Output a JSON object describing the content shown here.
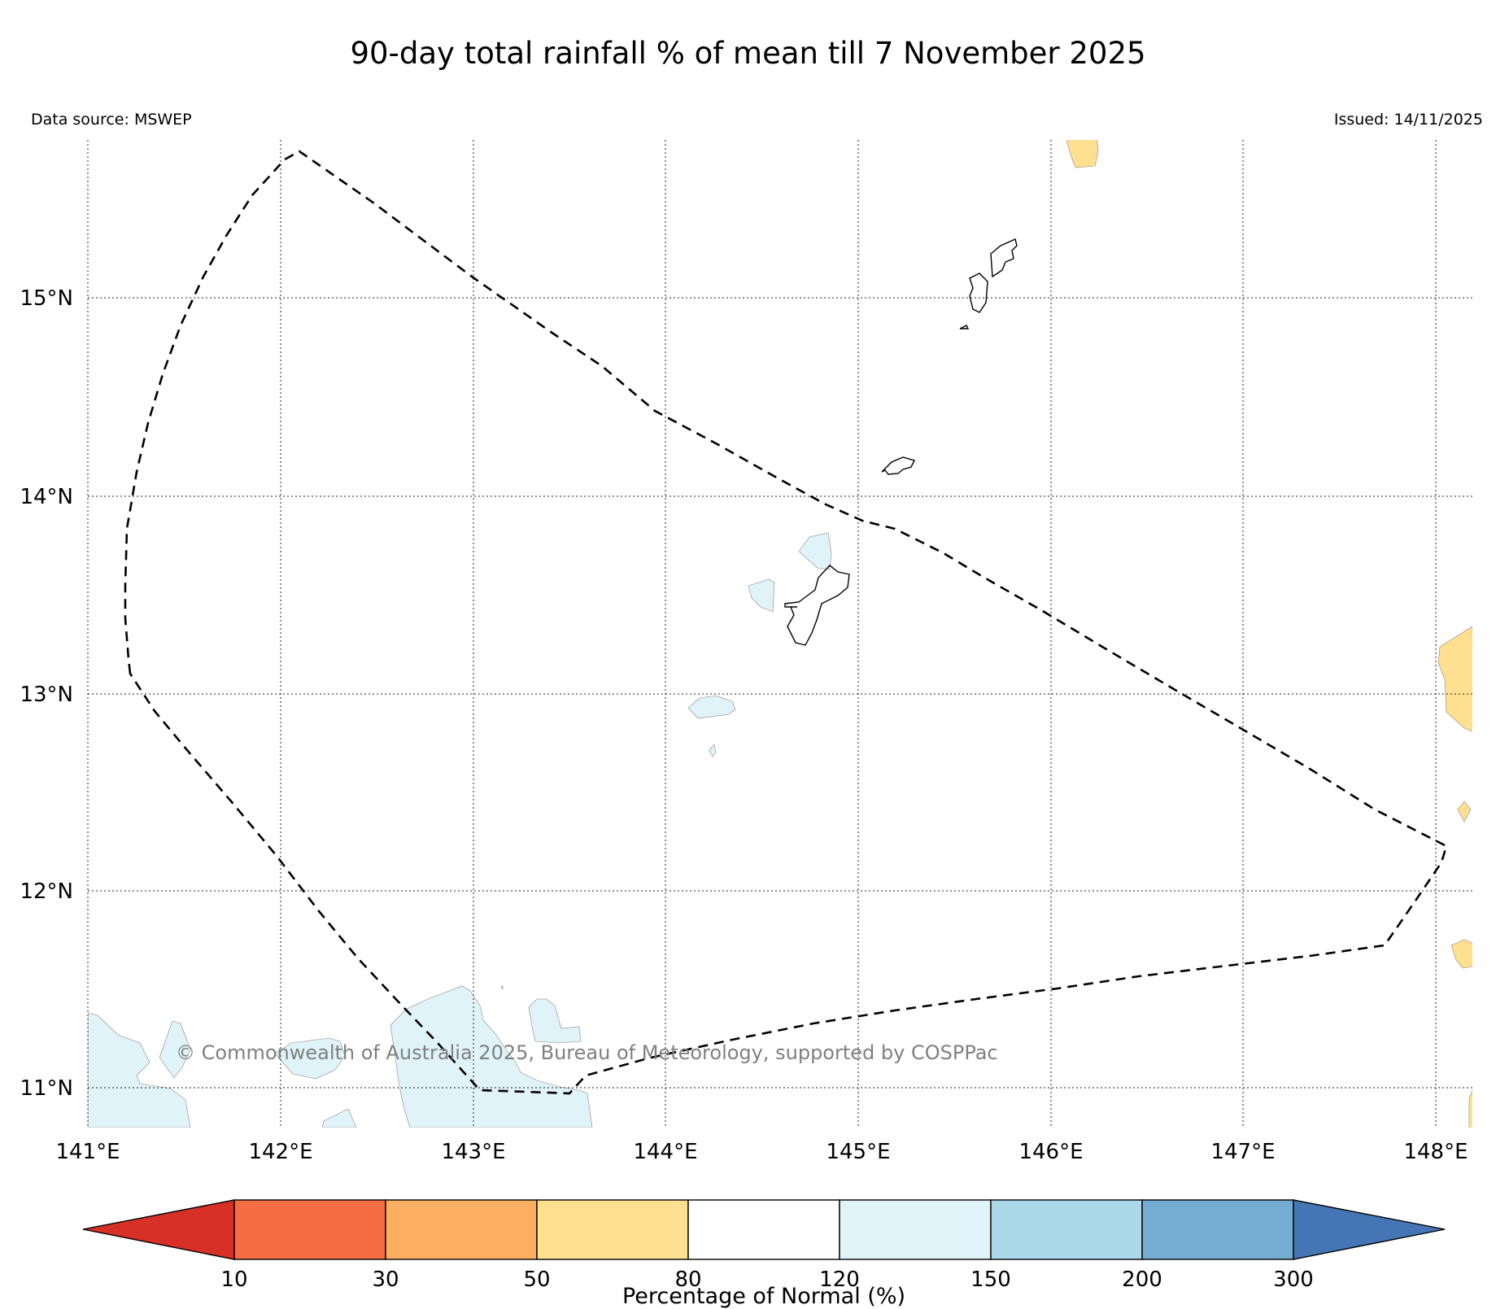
{
  "title": "90-day total rainfall % of mean till 7 November 2025",
  "data_source": "Data source: MSWEP",
  "issued": "Issued: 14/11/2025",
  "copyright": "© Commonwealth of Australia 2025, Bureau of Meteorology, supported by COSPPac",
  "map": {
    "lon_range": [
      141,
      148.2
    ],
    "lat_range": [
      10.8,
      15.8
    ],
    "gridlines": true,
    "lon_ticks": [
      "141°E",
      "142°E",
      "143°E",
      "144°E",
      "145°E",
      "146°E",
      "147°E",
      "148°E"
    ],
    "lat_ticks": [
      "11°N",
      "12°N",
      "13°N",
      "14°N",
      "15°N"
    ],
    "boundary_style": "dashed",
    "colors": {
      "below_50_80": "#fee090",
      "above_120_150": "#e0f3f8"
    }
  },
  "colorbar": {
    "label": "Percentage of Normal (%)",
    "ticks": [
      "10",
      "30",
      "50",
      "80",
      "120",
      "150",
      "200",
      "300"
    ],
    "colors": [
      "#d73027",
      "#f46d43",
      "#fdae61",
      "#fee090",
      "#ffffff",
      "#e0f3f8",
      "#abd9e9",
      "#74add1",
      "#4575b4"
    ],
    "extend": "both"
  }
}
